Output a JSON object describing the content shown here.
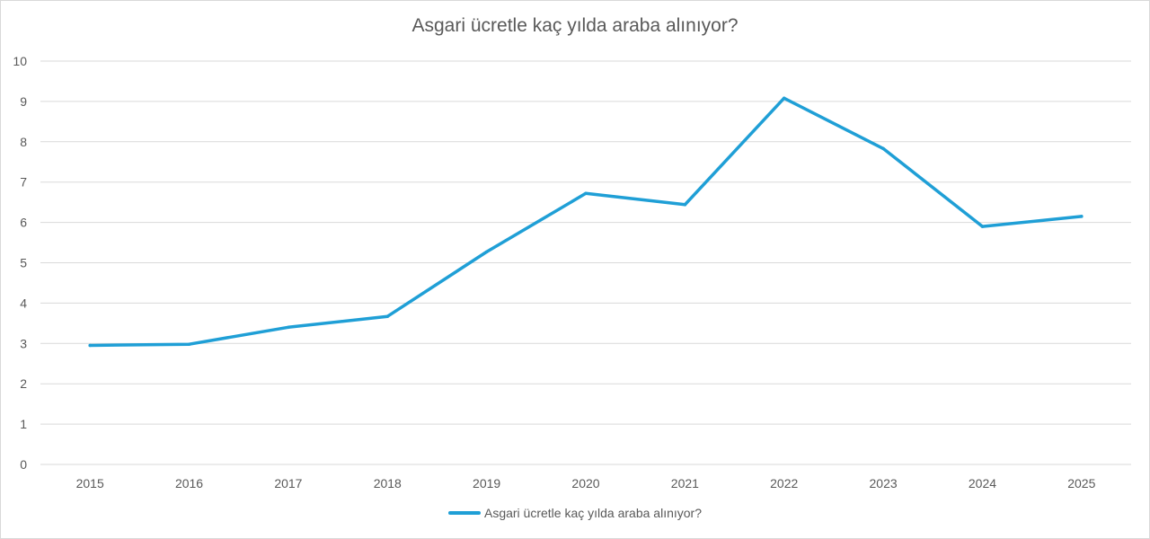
{
  "colors": {
    "series": "#1f9fd6",
    "grid": "#d9d9d9",
    "text": "#595959"
  },
  "chart_data": {
    "type": "line",
    "title": "Asgari ücretle kaç yılda araba alınıyor?",
    "xlabel": "",
    "ylabel": "",
    "categories": [
      "2015",
      "2016",
      "2017",
      "2018",
      "2019",
      "2020",
      "2021",
      "2022",
      "2023",
      "2024",
      "2025"
    ],
    "ylim": [
      0,
      10
    ],
    "yticks": [
      "0",
      "1",
      "2",
      "3",
      "4",
      "5",
      "6",
      "7",
      "8",
      "9",
      "10"
    ],
    "grid": true,
    "legend_position": "bottom",
    "series": [
      {
        "name": "Asgari ücretle kaç yılda araba alınıyor?",
        "values": [
          2.95,
          2.98,
          3.4,
          3.67,
          5.27,
          6.72,
          6.44,
          9.08,
          7.83,
          5.9,
          6.15
        ]
      }
    ]
  }
}
